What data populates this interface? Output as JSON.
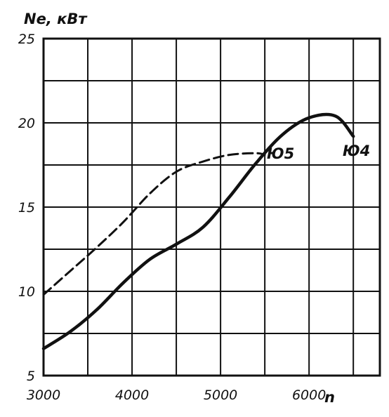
{
  "chart_data": {
    "type": "line",
    "title": "",
    "xlabel": "n",
    "ylabel": "Ne, кВт",
    "xlim": [
      3000,
      6800
    ],
    "ylim": [
      5,
      25
    ],
    "x_ticks": [
      3000,
      4000,
      5000,
      6000
    ],
    "y_ticks": [
      5,
      10,
      15,
      20,
      25
    ],
    "grid": true,
    "colors": {
      "line": "#111111",
      "grid": "#111111",
      "background": "#ffffff"
    },
    "series": [
      {
        "name": "Ю4",
        "style": "solid",
        "x": [
          3000,
          3300,
          3600,
          3900,
          4200,
          4500,
          4800,
          5100,
          5400,
          5700,
          6000,
          6300,
          6500
        ],
        "y": [
          6.6,
          7.6,
          8.9,
          10.5,
          11.9,
          12.8,
          13.8,
          15.6,
          17.6,
          19.3,
          20.3,
          20.4,
          19.2
        ]
      },
      {
        "name": "Ю5",
        "style": "dashed",
        "x": [
          3000,
          3300,
          3600,
          3900,
          4200,
          4500,
          4800,
          5100,
          5400,
          5500
        ],
        "y": [
          9.8,
          11.2,
          12.6,
          14.1,
          15.8,
          17.1,
          17.7,
          18.1,
          18.2,
          18.1
        ]
      }
    ]
  }
}
